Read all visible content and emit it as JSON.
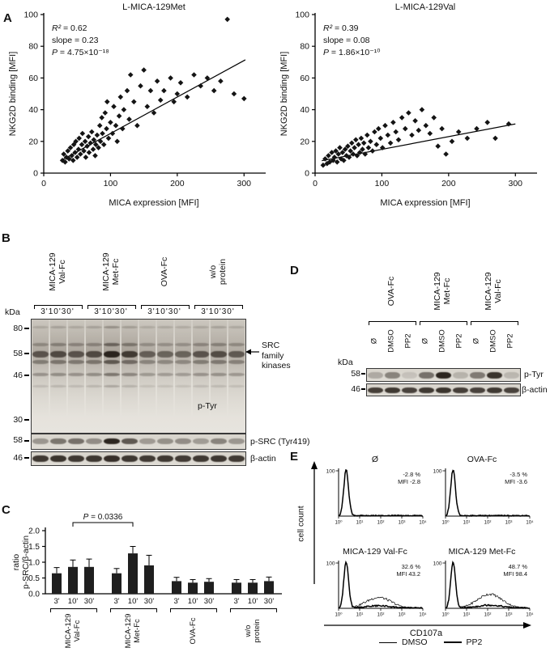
{
  "figure_labels": {
    "a": "A",
    "b": "B",
    "c": "C",
    "d": "D",
    "e": "E"
  },
  "panel_b": {
    "kda_label": "kDa",
    "time_labels": "3'10'30'",
    "group_labels": [
      [
        "MICA-129",
        "Val-Fc"
      ],
      [
        "MICA-129",
        "Met-Fc"
      ],
      [
        "OVA-Fc",
        ""
      ],
      [
        "w/o",
        "protein"
      ]
    ],
    "markers": [
      "80",
      "58",
      "46",
      "30"
    ],
    "src_arrow_label": [
      "SRC",
      "family",
      "kinases"
    ],
    "ptyr_label": "p-Tyr",
    "psrc_kda": "58",
    "psrc_label": "p-SRC (Tyr419)",
    "actin_kda": "46",
    "actin_label": "β-actin",
    "blots": {
      "main": {
        "lanes": 12,
        "smear": [
          0.85,
          0.95,
          0.9,
          0.95,
          1,
          1,
          0.8,
          0.75,
          0.75,
          0.85,
          0.9,
          0.8
        ],
        "rows": [
          {
            "y": 6,
            "h": 3,
            "intensities": [
              0.15,
              0.18,
              0.15,
              0.18,
              0.28,
              0.2,
              0.14,
              0.15,
              0.14,
              0.16,
              0.18,
              0.15
            ]
          },
          {
            "y": 21,
            "h": 4,
            "intensities": [
              0.28,
              0.32,
              0.3,
              0.3,
              0.5,
              0.38,
              0.26,
              0.25,
              0.25,
              0.3,
              0.32,
              0.28
            ]
          },
          {
            "y": 28,
            "h": 8,
            "intensities": [
              0.62,
              0.68,
              0.62,
              0.68,
              0.95,
              0.78,
              0.55,
              0.52,
              0.52,
              0.62,
              0.66,
              0.58
            ]
          },
          {
            "y": 36,
            "h": 5,
            "intensities": [
              0.38,
              0.42,
              0.4,
              0.42,
              0.6,
              0.48,
              0.34,
              0.32,
              0.32,
              0.38,
              0.4,
              0.36
            ]
          },
          {
            "y": 47,
            "h": 4,
            "intensities": [
              0.3,
              0.32,
              0.3,
              0.32,
              0.45,
              0.36,
              0.27,
              0.26,
              0.26,
              0.3,
              0.31,
              0.28
            ]
          },
          {
            "y": 58,
            "h": 3,
            "intensities": [
              0.12,
              0.14,
              0.12,
              0.14,
              0.22,
              0.16,
              0.1,
              0.1,
              0.1,
              0.12,
              0.13,
              0.11
            ]
          }
        ]
      },
      "psrc": {
        "lanes": 12,
        "rows": [
          {
            "y": 28,
            "h": 7,
            "intensities": [
              0.35,
              0.52,
              0.55,
              0.4,
              0.95,
              0.68,
              0.33,
              0.38,
              0.4,
              0.32,
              0.45,
              0.35
            ]
          }
        ]
      },
      "actin": {
        "lanes": 12,
        "rows": [
          {
            "y": 25,
            "h": 8,
            "intensities": [
              0.85,
              0.88,
              0.85,
              0.86,
              0.9,
              0.86,
              0.84,
              0.85,
              0.84,
              0.85,
              0.86,
              0.84
            ]
          }
        ]
      }
    }
  },
  "panel_d": {
    "group_labels": [
      [
        "OVA-Fc",
        ""
      ],
      [
        "MICA-129",
        "Met-Fc"
      ],
      [
        "MICA-129",
        "Val-Fc"
      ]
    ],
    "treatments": [
      "Ø",
      "DMSO",
      "PP2",
      "Ø",
      "DMSO",
      "PP2",
      "Ø",
      "DMSO",
      "PP2"
    ],
    "kda_label": "kDa",
    "row1_kda": "58",
    "row1_label": "p-Tyr",
    "row2_kda": "46",
    "row2_label": "β-actin",
    "blots": {
      "ptyr": {
        "lanes": 9,
        "rows": [
          {
            "y": 25,
            "h": 8,
            "intensities": [
              0.25,
              0.45,
              0.12,
              0.55,
              0.95,
              0.2,
              0.5,
              0.88,
              0.18
            ]
          }
        ]
      },
      "actin": {
        "lanes": 9,
        "rows": [
          {
            "y": 25,
            "h": 7,
            "intensities": [
              0.82,
              0.85,
              0.8,
              0.85,
              0.88,
              0.82,
              0.8,
              0.85,
              0.8
            ]
          }
        ]
      }
    }
  },
  "chart_data": [
    {
      "type": "scatter",
      "title": "L-MICA-129Met",
      "xlabel": "MICA expression [MFI]",
      "ylabel": "NKG2D binding [MFI]",
      "xlim": [
        0,
        330
      ],
      "ylim": [
        0,
        100
      ],
      "xticks": [
        0,
        100,
        200,
        300
      ],
      "yticks": [
        0,
        20,
        40,
        60,
        80,
        100
      ],
      "annotations": [
        "R² = 0.62",
        "slope = 0.23",
        "P = 4.75×10⁻¹⁸"
      ],
      "trend": {
        "slope": 0.23,
        "intercept": 2,
        "x0": 28,
        "x1": 302
      },
      "points": [
        [
          28,
          8
        ],
        [
          30,
          12
        ],
        [
          32,
          7
        ],
        [
          34,
          10
        ],
        [
          36,
          14
        ],
        [
          38,
          9
        ],
        [
          40,
          16
        ],
        [
          42,
          11
        ],
        [
          44,
          8
        ],
        [
          45,
          18
        ],
        [
          47,
          13
        ],
        [
          48,
          20
        ],
        [
          50,
          10
        ],
        [
          52,
          15
        ],
        [
          53,
          22
        ],
        [
          55,
          12
        ],
        [
          57,
          18
        ],
        [
          58,
          25
        ],
        [
          60,
          14
        ],
        [
          62,
          20
        ],
        [
          63,
          10
        ],
        [
          65,
          17
        ],
        [
          67,
          23
        ],
        [
          68,
          13
        ],
        [
          70,
          19
        ],
        [
          72,
          26
        ],
        [
          74,
          15
        ],
        [
          75,
          21
        ],
        [
          77,
          11
        ],
        [
          78,
          18
        ],
        [
          80,
          24
        ],
        [
          82,
          16
        ],
        [
          84,
          30
        ],
        [
          85,
          20
        ],
        [
          87,
          35
        ],
        [
          88,
          25
        ],
        [
          90,
          18
        ],
        [
          92,
          38
        ],
        [
          94,
          28
        ],
        [
          95,
          45
        ],
        [
          97,
          22
        ],
        [
          100,
          32
        ],
        [
          103,
          25
        ],
        [
          105,
          42
        ],
        [
          108,
          30
        ],
        [
          110,
          20
        ],
        [
          113,
          36
        ],
        [
          115,
          48
        ],
        [
          118,
          28
        ],
        [
          120,
          40
        ],
        [
          125,
          52
        ],
        [
          128,
          34
        ],
        [
          130,
          62
        ],
        [
          135,
          45
        ],
        [
          140,
          30
        ],
        [
          145,
          55
        ],
        [
          150,
          65
        ],
        [
          155,
          42
        ],
        [
          160,
          52
        ],
        [
          165,
          38
        ],
        [
          170,
          58
        ],
        [
          175,
          46
        ],
        [
          180,
          52
        ],
        [
          190,
          60
        ],
        [
          195,
          45
        ],
        [
          200,
          50
        ],
        [
          205,
          57
        ],
        [
          215,
          48
        ],
        [
          225,
          62
        ],
        [
          235,
          55
        ],
        [
          245,
          60
        ],
        [
          255,
          52
        ],
        [
          265,
          58
        ],
        [
          275,
          97
        ],
        [
          285,
          50
        ],
        [
          300,
          47
        ]
      ]
    },
    {
      "type": "scatter",
      "title": "L-MICA-129Val",
      "xlabel": "MICA expression [MFI]",
      "ylabel": "NKG2D binding [MFI]",
      "xlim": [
        0,
        330
      ],
      "ylim": [
        0,
        100
      ],
      "xticks": [
        0,
        100,
        200,
        300
      ],
      "yticks": [
        0,
        20,
        40,
        60,
        80,
        100
      ],
      "annotations": [
        "R² = 0.39",
        "slope = 0.08",
        "P = 1.86×10⁻¹⁰"
      ],
      "trend": {
        "slope": 0.08,
        "intercept": 7,
        "x0": 10,
        "x1": 300
      },
      "points": [
        [
          12,
          5
        ],
        [
          15,
          9
        ],
        [
          18,
          6
        ],
        [
          20,
          11
        ],
        [
          22,
          7
        ],
        [
          25,
          13
        ],
        [
          27,
          8
        ],
        [
          29,
          10
        ],
        [
          31,
          14
        ],
        [
          33,
          7
        ],
        [
          35,
          12
        ],
        [
          37,
          16
        ],
        [
          39,
          9
        ],
        [
          41,
          13
        ],
        [
          43,
          8
        ],
        [
          45,
          15
        ],
        [
          47,
          11
        ],
        [
          49,
          17
        ],
        [
          51,
          10
        ],
        [
          53,
          14
        ],
        [
          55,
          19
        ],
        [
          57,
          12
        ],
        [
          59,
          16
        ],
        [
          61,
          21
        ],
        [
          63,
          11
        ],
        [
          65,
          18
        ],
        [
          67,
          13
        ],
        [
          69,
          22
        ],
        [
          71,
          15
        ],
        [
          73,
          19
        ],
        [
          75,
          12
        ],
        [
          78,
          24
        ],
        [
          80,
          16
        ],
        [
          83,
          20
        ],
        [
          86,
          14
        ],
        [
          89,
          26
        ],
        [
          92,
          18
        ],
        [
          95,
          28
        ],
        [
          98,
          22
        ],
        [
          101,
          16
        ],
        [
          105,
          30
        ],
        [
          109,
          24
        ],
        [
          113,
          19
        ],
        [
          117,
          32
        ],
        [
          121,
          26
        ],
        [
          125,
          21
        ],
        [
          130,
          35
        ],
        [
          135,
          28
        ],
        [
          140,
          38
        ],
        [
          145,
          24
        ],
        [
          150,
          33
        ],
        [
          155,
          27
        ],
        [
          160,
          40
        ],
        [
          166,
          30
        ],
        [
          172,
          25
        ],
        [
          178,
          35
        ],
        [
          184,
          17
        ],
        [
          190,
          28
        ],
        [
          196,
          12
        ],
        [
          205,
          20
        ],
        [
          215,
          26
        ],
        [
          228,
          22
        ],
        [
          242,
          28
        ],
        [
          258,
          32
        ],
        [
          270,
          22
        ],
        [
          290,
          31
        ]
      ]
    },
    {
      "type": "bar",
      "ylabel": "ratio p-SRC/β-actin",
      "ylabel_lines": [
        "ratio",
        "p-SRC/β-actin"
      ],
      "ylim": [
        0,
        2
      ],
      "yticks": [
        "0.0",
        "0.5",
        "1.0",
        "1.5",
        "2.0"
      ],
      "categories": [
        "3'",
        "10'",
        "30'"
      ],
      "groups": [
        {
          "label": "MICA-129 Val-Fc",
          "values": [
            0.65,
            0.85,
            0.85
          ],
          "errors": [
            0.18,
            0.22,
            0.25
          ]
        },
        {
          "label": "MICA-129 Met-Fc",
          "values": [
            0.65,
            1.28,
            0.9
          ],
          "errors": [
            0.15,
            0.22,
            0.32
          ]
        },
        {
          "label": "OVA-Fc",
          "values": [
            0.4,
            0.35,
            0.38
          ],
          "errors": [
            0.12,
            0.1,
            0.1
          ]
        },
        {
          "label": "w/o protein",
          "values": [
            0.35,
            0.35,
            0.4
          ],
          "errors": [
            0.1,
            0.1,
            0.13
          ]
        }
      ],
      "label_lines": [
        [
          "MICA-129",
          "Val-Fc"
        ],
        [
          "MICA-129",
          "Met-Fc"
        ],
        [
          "OVA-Fc",
          ""
        ],
        [
          "w/o",
          "protein"
        ]
      ],
      "significance": {
        "text": "P = 0.0336",
        "from_bar": 1,
        "to_bar": 4
      }
    },
    {
      "type": "histogram-grid",
      "xlabel": "CD107a",
      "ylabel": "cell count",
      "ymax_label": "100",
      "xticks": [
        "10⁰",
        "10¹",
        "10²",
        "10³",
        "10⁴"
      ],
      "panels": [
        {
          "title": "Ø",
          "percent": "-2.8 %",
          "mfi": "MFI -2.8",
          "shift_height": 0,
          "shift_center": 1.8
        },
        {
          "title": "OVA-Fc",
          "percent": "-3.5 %",
          "mfi": "MFI -3.6",
          "shift_height": 0,
          "shift_center": 1.8
        },
        {
          "title": "MICA-129 Val-Fc",
          "percent": "32.6 %",
          "mfi": "MFI 43.2",
          "shift_height": 12,
          "shift_center": 1.9
        },
        {
          "title": "MICA-129 Met-Fc",
          "percent": "48.7 %",
          "mfi": "MFI 98.4",
          "shift_height": 16,
          "shift_center": 2.1
        }
      ],
      "legend": [
        {
          "label": "DMSO",
          "weight": "thin"
        },
        {
          "label": "PP2",
          "weight": "thick"
        }
      ]
    }
  ]
}
